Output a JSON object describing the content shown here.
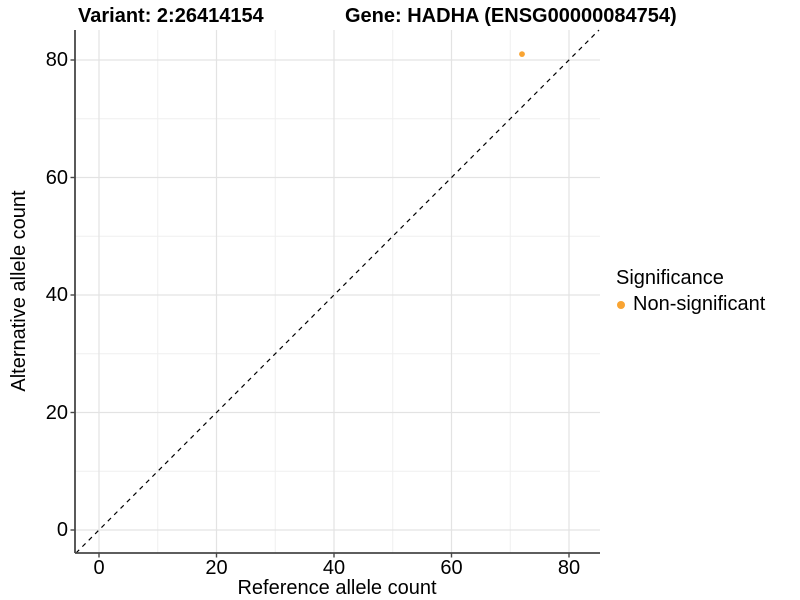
{
  "titles": {
    "variant": "Variant: 2:26414154",
    "gene": "Gene: HADHA (ENSG00000084754)"
  },
  "chart_data": {
    "type": "scatter",
    "title_left": "Variant: 2:26414154",
    "title_right": "Gene: HADHA (ENSG00000084754)",
    "xlabel": "Reference allele count",
    "ylabel": "Alternative allele count",
    "x_ticks": [
      0,
      20,
      40,
      60,
      80
    ],
    "y_ticks": [
      0,
      20,
      40,
      60,
      80
    ],
    "x_minor_ticks": [
      10,
      30,
      50,
      70
    ],
    "y_minor_ticks": [
      10,
      30,
      50,
      70
    ],
    "xlim": [
      -4.1,
      85.3
    ],
    "ylim": [
      -3.9,
      85.1
    ],
    "grid": true,
    "series": [
      {
        "name": "Non-significant",
        "color": "#F9A432",
        "points": [
          {
            "x": 72,
            "y": 81
          }
        ]
      }
    ],
    "reference_line": {
      "type": "identity",
      "equation": "y = x",
      "style": "dashed",
      "color": "#000000"
    },
    "legend": {
      "title": "Significance",
      "position": "right",
      "entries": [
        {
          "label": "Non-significant",
          "color": "#F9A432"
        }
      ]
    }
  },
  "colors": {
    "background": "#FFFFFF",
    "text": "#000000",
    "axis": "#474747",
    "grid_major": "#E3E3E3",
    "grid_minor": "#EFEFEF",
    "point": "#F9A432",
    "reference_line": "#000000"
  }
}
